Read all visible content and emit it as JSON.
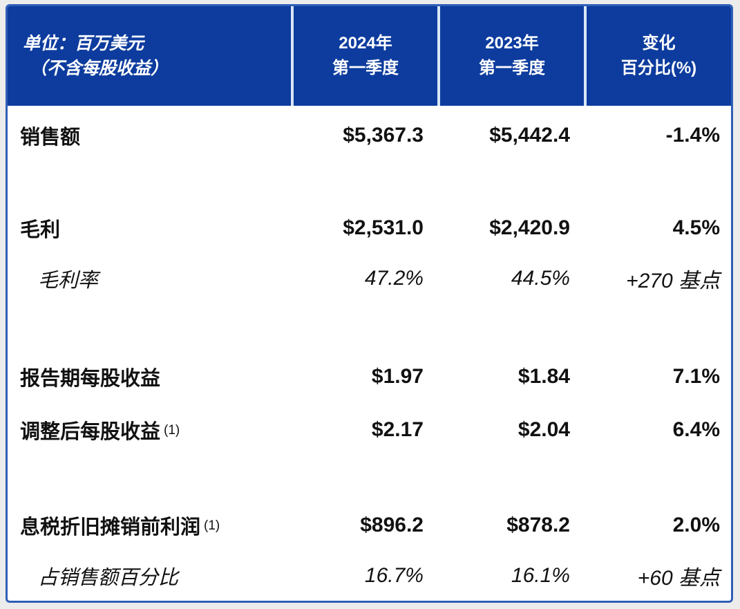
{
  "table": {
    "header": {
      "unit_line1": "单位：百万美元",
      "unit_line2": "（不含每股收益）",
      "columns": [
        {
          "line1": "2024年",
          "line2": "第一季度"
        },
        {
          "line1": "2023年",
          "line2": "第一季度"
        },
        {
          "line1": "变化",
          "line2": "百分比(%)"
        }
      ]
    },
    "rows": [
      {
        "label": "销售额",
        "q1_2024": "$5,367.3",
        "q1_2023": "$5,442.4",
        "change": "-1.4%"
      },
      {
        "label": "毛利",
        "q1_2024": "$2,531.0",
        "q1_2023": "$2,420.9",
        "change": "4.5%"
      },
      {
        "label": "毛利率",
        "q1_2024": "47.2%",
        "q1_2023": "44.5%",
        "change": "+270 基点"
      },
      {
        "label": "报告期每股收益",
        "q1_2024": "$1.97",
        "q1_2023": "$1.84",
        "change": "7.1%"
      },
      {
        "label": "调整后每股收益",
        "footnote": "(1)",
        "q1_2024": "$2.17",
        "q1_2023": "$2.04",
        "change": "6.4%"
      },
      {
        "label": "息税折旧摊销前利润",
        "footnote": "(1)",
        "q1_2024": "$896.2",
        "q1_2023": "$878.2",
        "change": "2.0%"
      },
      {
        "label": "占销售额百分比",
        "q1_2024": "16.7%",
        "q1_2023": "16.1%",
        "change": "+60 基点"
      }
    ],
    "colors": {
      "page_bg": "#ececec",
      "header_bg": "#0d3c9e",
      "header_text": "#ffffff",
      "border": "#2f5eb5",
      "divider": "#d8e6f7",
      "body_text": "#111111"
    }
  }
}
